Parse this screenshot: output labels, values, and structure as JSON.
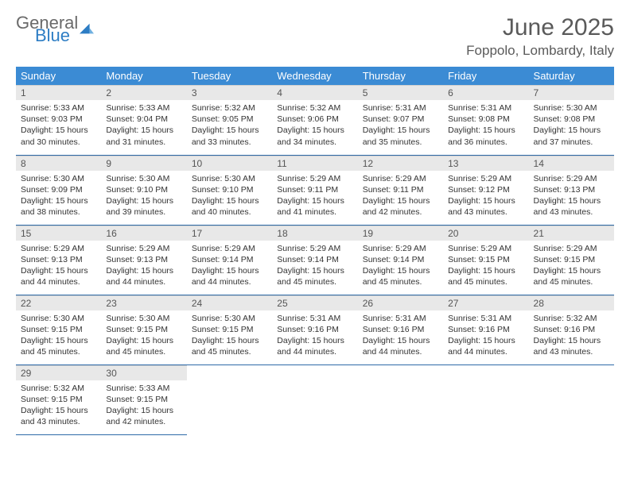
{
  "brand": {
    "part1": "General",
    "part2": "Blue",
    "color1": "#6a6a6a",
    "color2": "#2d7dc4"
  },
  "title": "June 2025",
  "location": "Foppolo, Lombardy, Italy",
  "theme": {
    "header_bg": "#3b8bd4",
    "header_fg": "#ffffff",
    "daynum_bg": "#e8e8e8",
    "border": "#2d6aa8",
    "background": "#ffffff"
  },
  "weekdays": [
    "Sunday",
    "Monday",
    "Tuesday",
    "Wednesday",
    "Thursday",
    "Friday",
    "Saturday"
  ],
  "days": [
    {
      "n": 1,
      "sr": "5:33 AM",
      "ss": "9:03 PM",
      "dl": "15 hours and 30 minutes."
    },
    {
      "n": 2,
      "sr": "5:33 AM",
      "ss": "9:04 PM",
      "dl": "15 hours and 31 minutes."
    },
    {
      "n": 3,
      "sr": "5:32 AM",
      "ss": "9:05 PM",
      "dl": "15 hours and 33 minutes."
    },
    {
      "n": 4,
      "sr": "5:32 AM",
      "ss": "9:06 PM",
      "dl": "15 hours and 34 minutes."
    },
    {
      "n": 5,
      "sr": "5:31 AM",
      "ss": "9:07 PM",
      "dl": "15 hours and 35 minutes."
    },
    {
      "n": 6,
      "sr": "5:31 AM",
      "ss": "9:08 PM",
      "dl": "15 hours and 36 minutes."
    },
    {
      "n": 7,
      "sr": "5:30 AM",
      "ss": "9:08 PM",
      "dl": "15 hours and 37 minutes."
    },
    {
      "n": 8,
      "sr": "5:30 AM",
      "ss": "9:09 PM",
      "dl": "15 hours and 38 minutes."
    },
    {
      "n": 9,
      "sr": "5:30 AM",
      "ss": "9:10 PM",
      "dl": "15 hours and 39 minutes."
    },
    {
      "n": 10,
      "sr": "5:30 AM",
      "ss": "9:10 PM",
      "dl": "15 hours and 40 minutes."
    },
    {
      "n": 11,
      "sr": "5:29 AM",
      "ss": "9:11 PM",
      "dl": "15 hours and 41 minutes."
    },
    {
      "n": 12,
      "sr": "5:29 AM",
      "ss": "9:11 PM",
      "dl": "15 hours and 42 minutes."
    },
    {
      "n": 13,
      "sr": "5:29 AM",
      "ss": "9:12 PM",
      "dl": "15 hours and 43 minutes."
    },
    {
      "n": 14,
      "sr": "5:29 AM",
      "ss": "9:13 PM",
      "dl": "15 hours and 43 minutes."
    },
    {
      "n": 15,
      "sr": "5:29 AM",
      "ss": "9:13 PM",
      "dl": "15 hours and 44 minutes."
    },
    {
      "n": 16,
      "sr": "5:29 AM",
      "ss": "9:13 PM",
      "dl": "15 hours and 44 minutes."
    },
    {
      "n": 17,
      "sr": "5:29 AM",
      "ss": "9:14 PM",
      "dl": "15 hours and 44 minutes."
    },
    {
      "n": 18,
      "sr": "5:29 AM",
      "ss": "9:14 PM",
      "dl": "15 hours and 45 minutes."
    },
    {
      "n": 19,
      "sr": "5:29 AM",
      "ss": "9:14 PM",
      "dl": "15 hours and 45 minutes."
    },
    {
      "n": 20,
      "sr": "5:29 AM",
      "ss": "9:15 PM",
      "dl": "15 hours and 45 minutes."
    },
    {
      "n": 21,
      "sr": "5:29 AM",
      "ss": "9:15 PM",
      "dl": "15 hours and 45 minutes."
    },
    {
      "n": 22,
      "sr": "5:30 AM",
      "ss": "9:15 PM",
      "dl": "15 hours and 45 minutes."
    },
    {
      "n": 23,
      "sr": "5:30 AM",
      "ss": "9:15 PM",
      "dl": "15 hours and 45 minutes."
    },
    {
      "n": 24,
      "sr": "5:30 AM",
      "ss": "9:15 PM",
      "dl": "15 hours and 45 minutes."
    },
    {
      "n": 25,
      "sr": "5:31 AM",
      "ss": "9:16 PM",
      "dl": "15 hours and 44 minutes."
    },
    {
      "n": 26,
      "sr": "5:31 AM",
      "ss": "9:16 PM",
      "dl": "15 hours and 44 minutes."
    },
    {
      "n": 27,
      "sr": "5:31 AM",
      "ss": "9:16 PM",
      "dl": "15 hours and 44 minutes."
    },
    {
      "n": 28,
      "sr": "5:32 AM",
      "ss": "9:16 PM",
      "dl": "15 hours and 43 minutes."
    },
    {
      "n": 29,
      "sr": "5:32 AM",
      "ss": "9:15 PM",
      "dl": "15 hours and 43 minutes."
    },
    {
      "n": 30,
      "sr": "5:33 AM",
      "ss": "9:15 PM",
      "dl": "15 hours and 42 minutes."
    }
  ],
  "labels": {
    "sunrise": "Sunrise:",
    "sunset": "Sunset:",
    "daylight": "Daylight:"
  },
  "layout": {
    "start_weekday": 0,
    "cols": 7
  }
}
